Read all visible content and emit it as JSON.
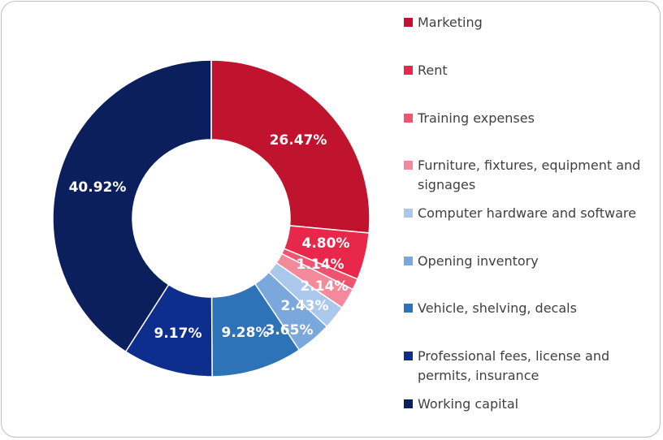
{
  "chart_data": {
    "type": "pie",
    "variant": "donut",
    "legend_position": "right",
    "series": [
      {
        "name": "Marketing",
        "value": 26.47,
        "label": "26.47%",
        "color": "#c0132e"
      },
      {
        "name": "Rent",
        "value": 4.8,
        "label": "4.80%",
        "color": "#e8284a"
      },
      {
        "name": "Training expenses",
        "value": 1.14,
        "label": "1.14%",
        "color": "#ee5470"
      },
      {
        "name": "Furniture, fixtures, equipment and signages",
        "value": 2.14,
        "label": "2.14%",
        "color": "#f28a9c"
      },
      {
        "name": "Computer hardware and software",
        "value": 2.43,
        "label": "2.43%",
        "color": "#a9c8ec"
      },
      {
        "name": "Opening inventory",
        "value": 3.65,
        "label": "3.65%",
        "color": "#7aa7dc"
      },
      {
        "name": "Vehicle, shelving, decals",
        "value": 9.28,
        "label": "9.28%",
        "color": "#2e72b8"
      },
      {
        "name": "Professional fees, license and permits, insurance",
        "value": 9.17,
        "label": "9.17%",
        "color": "#0d2e8c"
      },
      {
        "name": "Working capital",
        "value": 40.92,
        "label": "40.92%",
        "color": "#0a1f5c"
      }
    ]
  }
}
